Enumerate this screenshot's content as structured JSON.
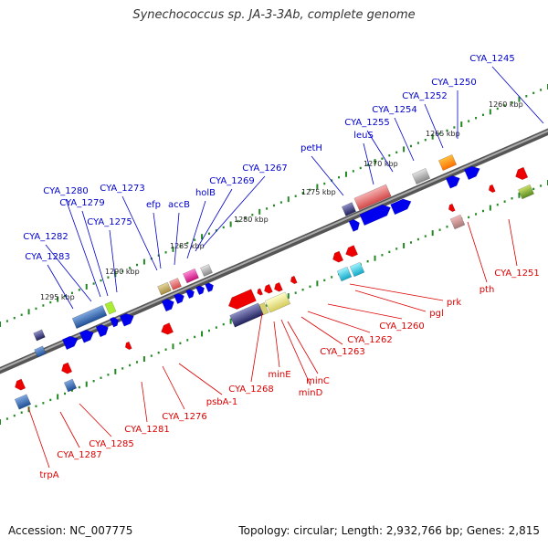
{
  "title": "Synechococcus sp. JA-3-3Ab, complete genome",
  "footer": {
    "accession_label": "Accession:",
    "accession": "NC_007775",
    "topology_label": "Topology:",
    "topology": "circular",
    "length_label": "Length:",
    "length": "2,932,766 bp",
    "genes_label": "Genes:",
    "genes": "2,815"
  },
  "colors": {
    "forward_label": "#0000cc",
    "reverse_label": "#dd0000",
    "forward_gene": "#0000ee",
    "reverse_gene": "#ee0000",
    "backbone": "#777777",
    "tick": "#228822"
  },
  "scale_labels": [
    "1260 kbp",
    "1265 kbp",
    "1270 kbp",
    "1275 kbp",
    "1280 kbp",
    "1285 kbp",
    "1290 kbp",
    "1295 kbp"
  ],
  "forward_labels": [
    "CYA_1245",
    "CYA_1250",
    "CYA_1252",
    "CYA_1254",
    "CYA_1255",
    "leuS",
    "petH",
    "CYA_1267",
    "CYA_1269",
    "holB",
    "accB",
    "efp",
    "CYA_1273",
    "CYA_1275",
    "CYA_1279",
    "CYA_1280",
    "CYA_1282",
    "CYA_1283"
  ],
  "reverse_labels": [
    "CYA_1251",
    "pth",
    "prk",
    "pgl",
    "CYA_1260",
    "CYA_1262",
    "CYA_1263",
    "minC",
    "minD",
    "minE",
    "CYA_1268",
    "psbA-1",
    "CYA_1276",
    "CYA_1281",
    "CYA_1285",
    "CYA_1287",
    "trpA"
  ]
}
